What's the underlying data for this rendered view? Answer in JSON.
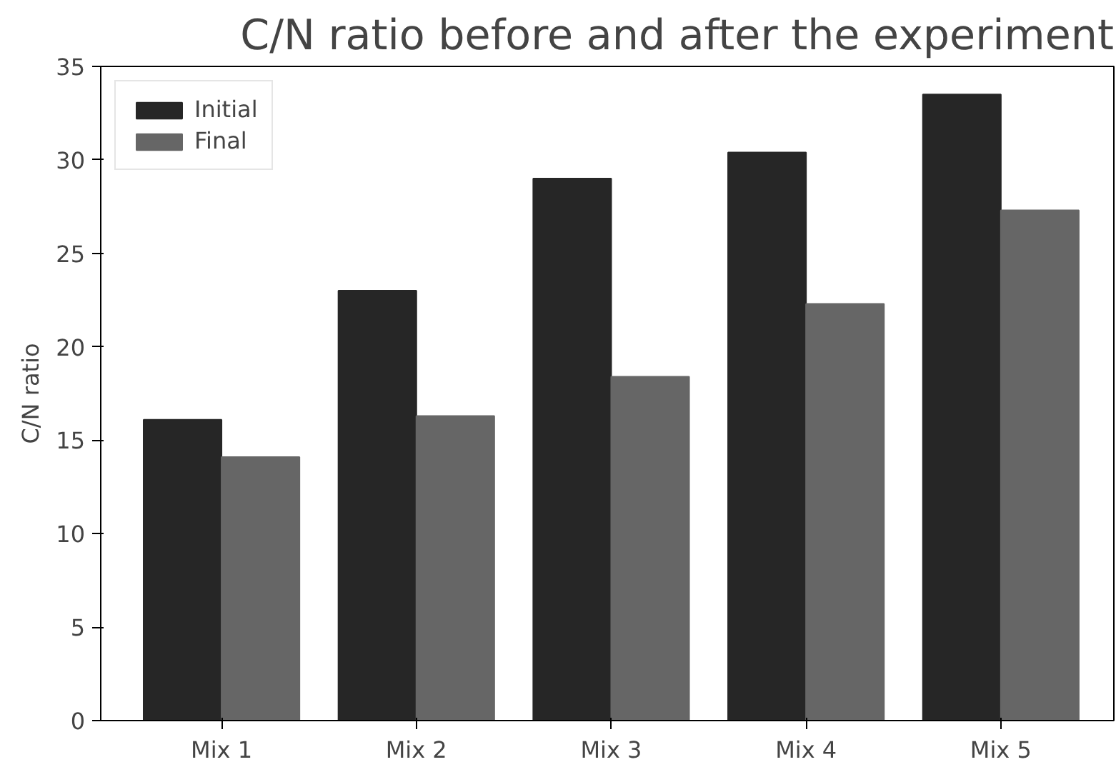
{
  "chart_data": {
    "type": "bar",
    "title": "C/N ratio before and after the experiment",
    "ylabel": "C/N ratio",
    "categories": [
      "Mix 1",
      "Mix 2",
      "Mix 3",
      "Mix 4",
      "Mix 5"
    ],
    "series": [
      {
        "name": "Initial",
        "color": "#262626",
        "values": [
          16.1,
          23.0,
          29.0,
          30.4,
          33.5
        ]
      },
      {
        "name": "Final",
        "color": "#666666",
        "values": [
          14.1,
          16.3,
          18.4,
          22.3,
          27.3
        ]
      }
    ],
    "ylim": [
      0,
      35
    ],
    "yticks": [
      0,
      5,
      10,
      15,
      20,
      25,
      30,
      35
    ],
    "grid": false,
    "legend": "top left"
  }
}
